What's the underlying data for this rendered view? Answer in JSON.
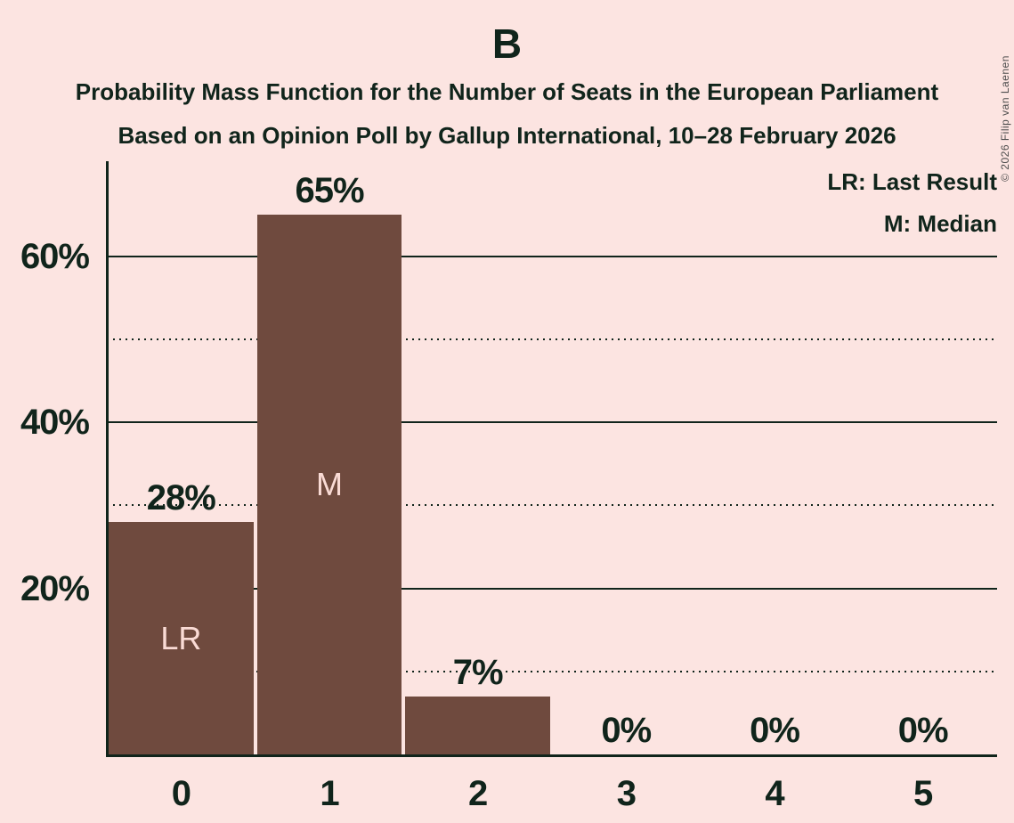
{
  "title": "B",
  "subtitle1": "Probability Mass Function for the Number of Seats in the European Parliament",
  "subtitle2": "Based on an Opinion Poll by Gallup International, 10–28 February 2026",
  "legend": {
    "lr": "LR: Last Result",
    "m": "M: Median"
  },
  "copyright": "© 2026 Filip van Laenen",
  "colors": {
    "background": "#fce4e1",
    "bar": "#6f4a3e",
    "text": "#10241b",
    "bar_label": "#fadbd5"
  },
  "chart_data": {
    "type": "bar",
    "title": "Probability Mass Function for the Number of Seats in the European Parliament",
    "xlabel": "",
    "ylabel": "",
    "categories": [
      "0",
      "1",
      "2",
      "3",
      "4",
      "5"
    ],
    "values": [
      28,
      65,
      7,
      0,
      0,
      0
    ],
    "value_labels": [
      "28%",
      "65%",
      "7%",
      "0%",
      "0%",
      "0%"
    ],
    "bar_annotations": [
      {
        "index": 0,
        "label": "LR",
        "meaning": "Last Result"
      },
      {
        "index": 1,
        "label": "M",
        "meaning": "Median"
      }
    ],
    "ylim": [
      0,
      70
    ],
    "yticks": [
      {
        "value": 20,
        "label": "20%"
      },
      {
        "value": 40,
        "label": "40%"
      },
      {
        "value": 60,
        "label": "60%"
      }
    ],
    "gridlines": [
      {
        "value": 10,
        "style": "dotted"
      },
      {
        "value": 20,
        "style": "solid"
      },
      {
        "value": 30,
        "style": "dotted"
      },
      {
        "value": 40,
        "style": "solid"
      },
      {
        "value": 50,
        "style": "dotted"
      },
      {
        "value": 60,
        "style": "solid"
      }
    ],
    "legend_position": "top-right",
    "grid": true
  }
}
